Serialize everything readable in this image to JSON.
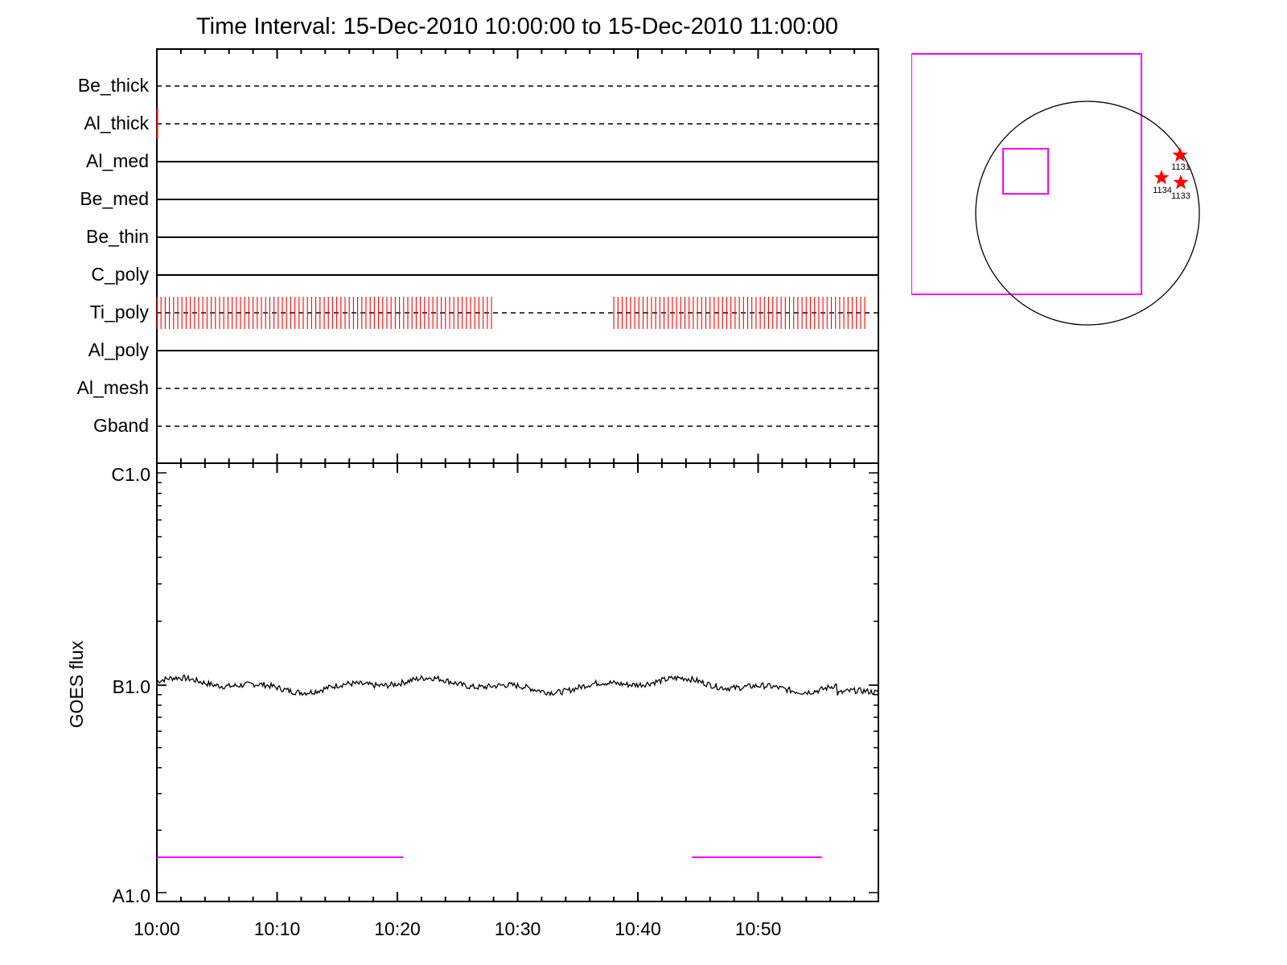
{
  "chart_data": {
    "type": "line",
    "title": "Time Interval: 15-Dec-2010 10:00:00 to 15-Dec-2010 11:00:00",
    "x_range": [
      "10:00",
      "11:00"
    ],
    "x_tick_labels": [
      "10:00",
      "10:10",
      "10:20",
      "10:30",
      "10:40",
      "10:50"
    ],
    "panels": [
      {
        "name": "attenuator-states",
        "channels": [
          {
            "label": "Be_thick",
            "line": "dashed"
          },
          {
            "label": "Al_thick",
            "line": "dashed"
          },
          {
            "label": "Al_med",
            "line": "solid"
          },
          {
            "label": "Be_med",
            "line": "solid"
          },
          {
            "label": "Be_thin",
            "line": "solid"
          },
          {
            "label": "C_poly",
            "line": "solid"
          },
          {
            "label": "Ti_poly",
            "line": "dashed"
          },
          {
            "label": "Al_poly",
            "line": "solid"
          },
          {
            "label": "Al_mesh",
            "line": "dashed"
          },
          {
            "label": "Gband",
            "line": "dashed"
          }
        ],
        "ti_poly_activity_intervals": [
          [
            "10:00",
            "10:28"
          ],
          [
            "10:38",
            "10:59"
          ]
        ]
      },
      {
        "name": "goes-flux",
        "ylabel": "GOES flux",
        "y_scale": "log",
        "y_tick_labels": [
          "A1.0",
          "B1.0",
          "C1.0"
        ],
        "ylim": [
          "A1.0",
          "C1.0"
        ],
        "series": [
          {
            "values_approx": "near B1.0 throughout, slight dip to ~B0.9 around 10:57"
          }
        ],
        "magenta_intervals": [
          [
            "10:00",
            "10:20.5"
          ],
          [
            "10:44.5",
            "10:55.3"
          ]
        ]
      }
    ],
    "disk_map": {
      "active_regions": [
        "1131",
        "1134",
        "1133"
      ]
    }
  },
  "colors": {
    "axes": "#000000",
    "activity": "#ff0000",
    "interval": "#ff00ff",
    "disk": "#000000",
    "star": "#ff0000"
  }
}
